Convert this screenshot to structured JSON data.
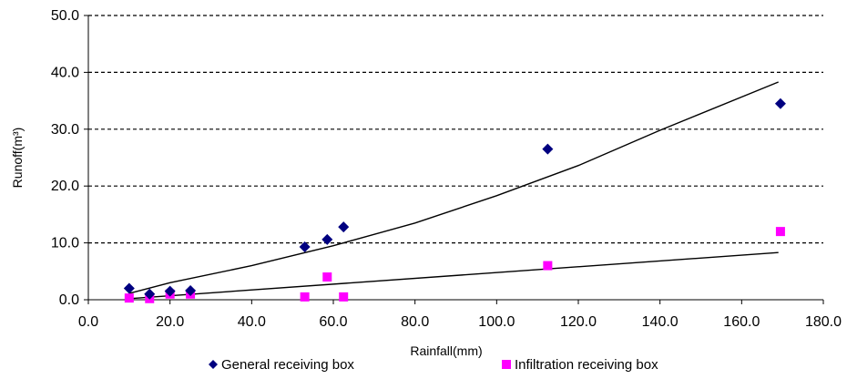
{
  "chart_data": {
    "type": "scatter",
    "title": "",
    "xlabel": "Rainfall(mm)",
    "ylabel": "Runoff(m³)",
    "xlim": [
      0,
      180
    ],
    "ylim": [
      0,
      50
    ],
    "x_ticks": [
      "0.0",
      "20.0",
      "40.0",
      "60.0",
      "80.0",
      "100.0",
      "120.0",
      "140.0",
      "160.0",
      "180.0"
    ],
    "y_ticks": [
      "0.0",
      "10.0",
      "20.0",
      "30.0",
      "40.0",
      "50.0"
    ],
    "grid": "horizontal dashed",
    "legend_placement": "bottom",
    "series": [
      {
        "name": "General receiving box",
        "marker": "diamond",
        "color": "#000080",
        "points": [
          {
            "x": 10.0,
            "y": 2.0
          },
          {
            "x": 15.0,
            "y": 1.0
          },
          {
            "x": 20.0,
            "y": 1.5
          },
          {
            "x": 25.0,
            "y": 1.6
          },
          {
            "x": 53.0,
            "y": 9.3
          },
          {
            "x": 58.5,
            "y": 10.6
          },
          {
            "x": 62.5,
            "y": 12.8
          },
          {
            "x": 112.5,
            "y": 26.5
          },
          {
            "x": 169.5,
            "y": 34.5
          }
        ],
        "trendline": [
          {
            "x": 10,
            "y": 1.1
          },
          {
            "x": 20,
            "y": 3.0
          },
          {
            "x": 40,
            "y": 6.0
          },
          {
            "x": 60,
            "y": 9.5
          },
          {
            "x": 80,
            "y": 13.5
          },
          {
            "x": 100,
            "y": 18.3
          },
          {
            "x": 120,
            "y": 23.6
          },
          {
            "x": 140,
            "y": 29.8
          },
          {
            "x": 169,
            "y": 38.3
          }
        ]
      },
      {
        "name": "Infiltration receiving box",
        "marker": "square",
        "color": "#ff00ff",
        "points": [
          {
            "x": 10.0,
            "y": 0.3
          },
          {
            "x": 15.0,
            "y": 0.2
          },
          {
            "x": 20.0,
            "y": 1.0
          },
          {
            "x": 25.0,
            "y": 1.0
          },
          {
            "x": 53.0,
            "y": 0.5
          },
          {
            "x": 58.5,
            "y": 4.0
          },
          {
            "x": 62.5,
            "y": 0.5
          },
          {
            "x": 112.5,
            "y": 6.0
          },
          {
            "x": 169.5,
            "y": 12.0
          }
        ],
        "trendline": [
          {
            "x": 10,
            "y": 0.2
          },
          {
            "x": 169,
            "y": 8.3
          }
        ]
      }
    ]
  }
}
